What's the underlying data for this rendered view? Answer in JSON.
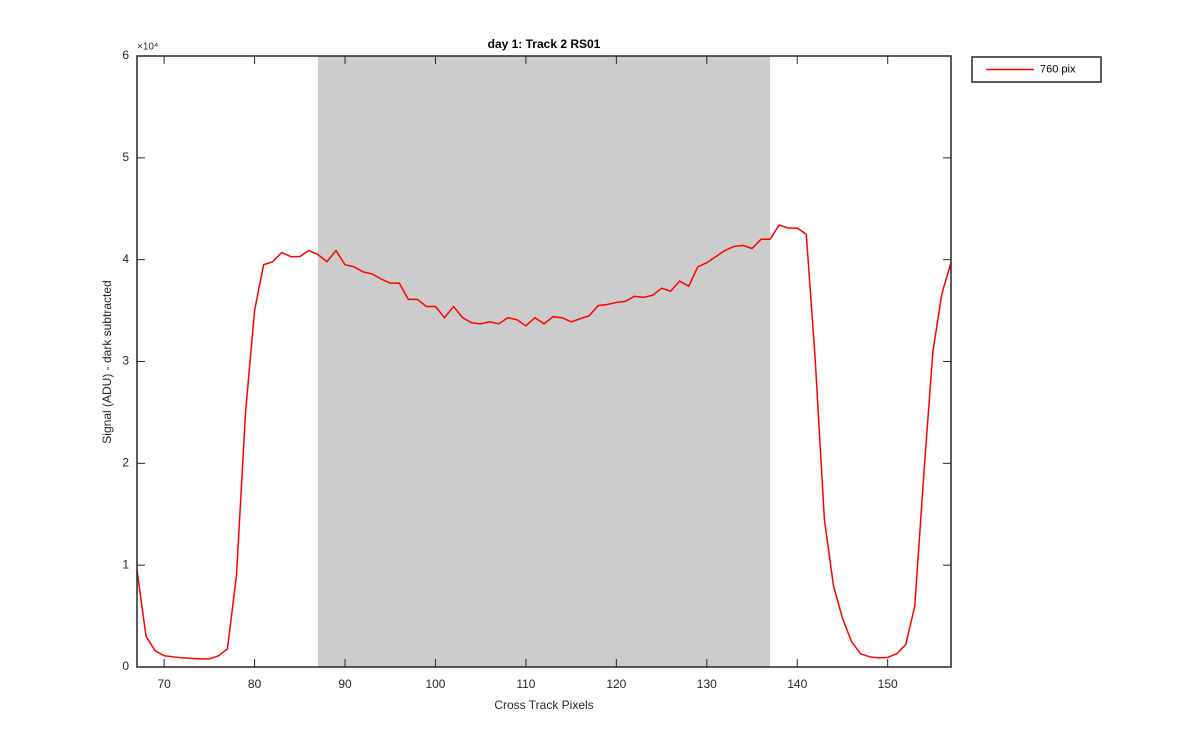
{
  "chart_data": {
    "type": "line",
    "title": "day 1: Track 2  RS01",
    "x_label": "Cross Track Pixels",
    "y_label": "Signal (ADU) - dark subtracted",
    "y_multiplier": "×10⁴",
    "xlim": [
      67,
      157
    ],
    "xticks": [
      70,
      80,
      90,
      100,
      110,
      120,
      130,
      140,
      150
    ],
    "ylim": [
      0,
      60000
    ],
    "yticks": [
      {
        "value": 0,
        "label": "0"
      },
      {
        "value": 10000,
        "label": "1"
      },
      {
        "value": 20000,
        "label": "2"
      },
      {
        "value": 30000,
        "label": "3"
      },
      {
        "value": 40000,
        "label": "4"
      },
      {
        "value": 50000,
        "label": "5"
      },
      {
        "value": 60000,
        "label": "6"
      }
    ],
    "shaded_span": [
      87,
      137
    ],
    "shaded_color": "#cccccc",
    "legend": "northeast-outside",
    "x": [
      67,
      68,
      69,
      70,
      71,
      72,
      73,
      74,
      75,
      76,
      77,
      78,
      79,
      80,
      81,
      82,
      83,
      84,
      85,
      86,
      87,
      88,
      89,
      90,
      91,
      92,
      93,
      94,
      95,
      96,
      97,
      98,
      99,
      100,
      101,
      102,
      103,
      104,
      105,
      106,
      107,
      108,
      109,
      110,
      111,
      112,
      113,
      114,
      115,
      116,
      117,
      118,
      119,
      120,
      121,
      122,
      123,
      124,
      125,
      126,
      127,
      128,
      129,
      130,
      131,
      132,
      133,
      134,
      135,
      136,
      137,
      138,
      139,
      140,
      141,
      142,
      143,
      144,
      145,
      146,
      147,
      148,
      149,
      150,
      151,
      152,
      153,
      154,
      155,
      156,
      157
    ],
    "series": [
      {
        "name": "760 pix",
        "color": "#ff0000",
        "values": [
          9500,
          3000,
          1600,
          1100,
          1000,
          900,
          850,
          800,
          800,
          1100,
          1800,
          9000,
          25000,
          35000,
          39500,
          39800,
          40700,
          40300,
          40300,
          40900,
          40500,
          39800,
          40900,
          39500,
          39300,
          38800,
          38600,
          38100,
          37700,
          37700,
          36100,
          36100,
          35400,
          35400,
          34300,
          35400,
          34300,
          33800,
          33700,
          33900,
          33700,
          34300,
          34100,
          33500,
          34300,
          33700,
          34400,
          34300,
          33900,
          34200,
          34500,
          35500,
          35600,
          35800,
          35900,
          36400,
          36300,
          36500,
          37200,
          36900,
          37900,
          37400,
          39300,
          39700,
          40300,
          40900,
          41300,
          41400,
          41100,
          42000,
          42000,
          43400,
          43100,
          43100,
          42500,
          30000,
          14500,
          8000,
          4800,
          2500,
          1300,
          1000,
          900,
          950,
          1300,
          2200,
          6000,
          19000,
          31000,
          36700,
          39700
        ]
      }
    ]
  }
}
